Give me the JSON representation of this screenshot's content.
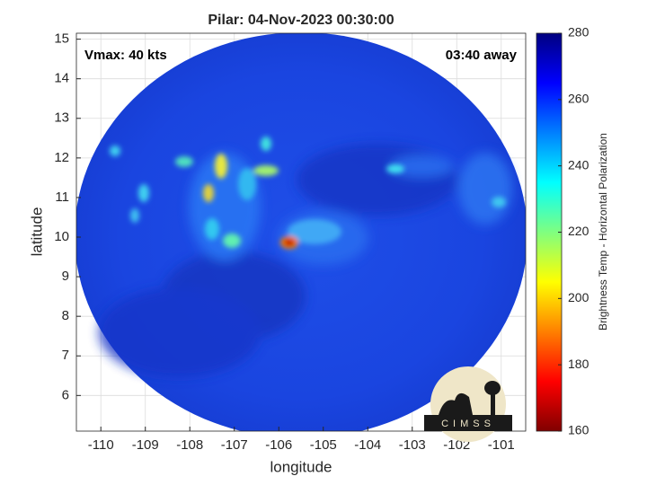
{
  "chart_data": {
    "type": "map",
    "title": "Pilar: 04-Nov-2023 00:30:00",
    "annotations": [
      "Vmax: 40 kts",
      "03:40 away"
    ],
    "x_label": "longitude",
    "y_label": "latitude",
    "xlim": [
      -110.55,
      -100.45
    ],
    "xticks": [
      -110,
      -109,
      -108,
      -107,
      -106,
      -105,
      -104,
      -103,
      -102,
      -101
    ],
    "ylim": [
      5.1,
      15.15
    ],
    "yticks": [
      6,
      7,
      8,
      9,
      10,
      11,
      12,
      13,
      14,
      15
    ],
    "grid": true,
    "colorbar": {
      "label": "Brightness Temp - Horizontal Polarization",
      "lim": [
        160,
        280
      ],
      "ticks": [
        160,
        180,
        200,
        220,
        240,
        260,
        280
      ],
      "colormap": "jet"
    },
    "logo_text": "CIMSS"
  }
}
